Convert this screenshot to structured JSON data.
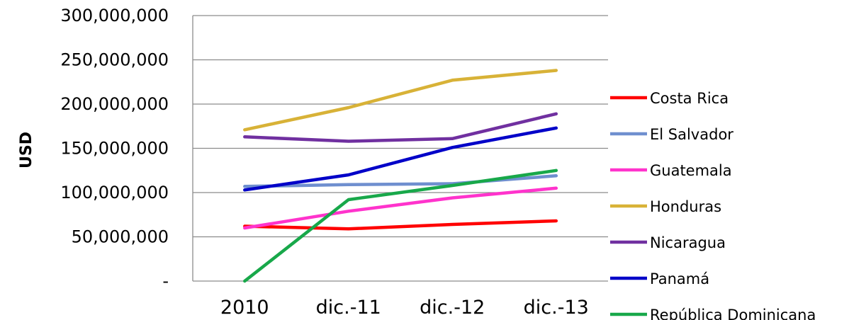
{
  "chart_data": {
    "type": "line",
    "title": "",
    "xlabel": "",
    "ylabel": "USD",
    "categories": [
      "2010",
      "dic.-11",
      "dic.-12",
      "dic.-13"
    ],
    "ylim": [
      0,
      300000000
    ],
    "yticks": [
      0,
      50000000,
      100000000,
      150000000,
      200000000,
      250000000,
      300000000
    ],
    "ytick_labels": [
      "-",
      "50,000,000",
      "100,000,000",
      "150,000,000",
      "200,000,000",
      "250,000,000",
      "300,000,000"
    ],
    "grid": "horizontal",
    "legend_position": "right",
    "series": [
      {
        "name": "Costa Rica",
        "color": "#ff0000",
        "values": [
          62000000,
          59000000,
          64000000,
          68000000
        ]
      },
      {
        "name": "El Salvador",
        "color": "#6f8fcf",
        "values": [
          107000000,
          109000000,
          110000000,
          119000000
        ]
      },
      {
        "name": "Guatemala",
        "color": "#ff33cc",
        "values": [
          60000000,
          79000000,
          94000000,
          105000000
        ]
      },
      {
        "name": "Honduras",
        "color": "#d8b237",
        "values": [
          171000000,
          196000000,
          227000000,
          238000000
        ]
      },
      {
        "name": "Nicaragua",
        "color": "#7030a0",
        "values": [
          163000000,
          158000000,
          161000000,
          189000000
        ]
      },
      {
        "name": "Panamá",
        "color": "#0000c8",
        "values": [
          103000000,
          120000000,
          151000000,
          173000000
        ]
      },
      {
        "name": "República Dominicana",
        "color": "#18a84a",
        "values": [
          0,
          92000000,
          108000000,
          125000000
        ]
      }
    ]
  }
}
